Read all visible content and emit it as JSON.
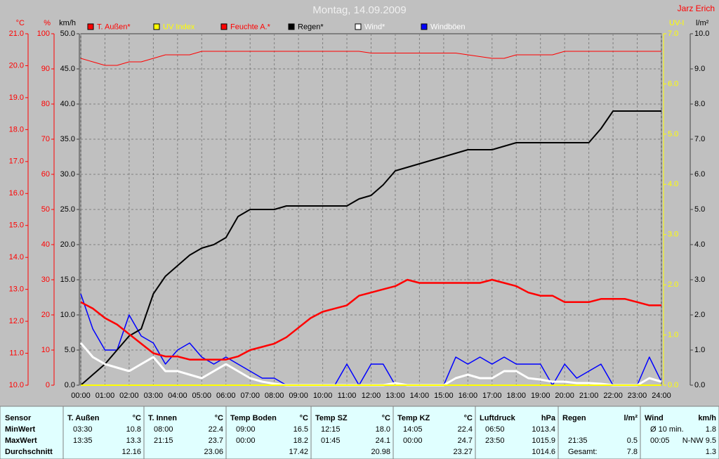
{
  "chart_data": {
    "type": "line",
    "title": "Montag, 14.09.2009",
    "annotation": "Jarz Erich",
    "grid": true,
    "xlim": [
      0,
      24
    ],
    "xticks": [
      {
        "value": 0,
        "label": "00:00"
      },
      {
        "value": 1,
        "label": "01:00"
      },
      {
        "value": 2,
        "label": "02:00"
      },
      {
        "value": 3,
        "label": "03:00"
      },
      {
        "value": 4,
        "label": "04:00"
      },
      {
        "value": 5,
        "label": "05:00"
      },
      {
        "value": 6,
        "label": "06:00"
      },
      {
        "value": 7,
        "label": "07:00"
      },
      {
        "value": 8,
        "label": "08:00"
      },
      {
        "value": 9,
        "label": "09:00"
      },
      {
        "value": 10,
        "label": "10:00"
      },
      {
        "value": 11,
        "label": "11:00"
      },
      {
        "value": 12,
        "label": "12:00"
      },
      {
        "value": 13,
        "label": "13:00"
      },
      {
        "value": 14,
        "label": "14:00"
      },
      {
        "value": 15,
        "label": "15:00"
      },
      {
        "value": 16,
        "label": "16:00"
      },
      {
        "value": 17,
        "label": "17:00"
      },
      {
        "value": 18,
        "label": "18:00"
      },
      {
        "value": 19,
        "label": "19:00"
      },
      {
        "value": 20,
        "label": "20:00"
      },
      {
        "value": 21,
        "label": "21:00"
      },
      {
        "value": 22,
        "label": "22:00"
      },
      {
        "value": 23,
        "label": "23:00"
      },
      {
        "value": 24,
        "label": "24:00"
      }
    ],
    "x": [
      0,
      0.5,
      1,
      1.5,
      2,
      2.5,
      3,
      3.5,
      4,
      4.5,
      5,
      5.5,
      6,
      6.5,
      7,
      7.5,
      8,
      8.5,
      9,
      9.5,
      10,
      10.5,
      11,
      11.5,
      12,
      12.5,
      13,
      13.5,
      14,
      14.5,
      15,
      15.5,
      16,
      16.5,
      17,
      17.5,
      18,
      18.5,
      19,
      19.5,
      20,
      20.5,
      21,
      21.5,
      22,
      22.5,
      23,
      23.5,
      24
    ],
    "axes": [
      {
        "label": "°C",
        "color": "#ff0000",
        "side": "left",
        "lim": [
          10,
          21
        ],
        "ticks": [
          {
            "value": 10,
            "label": "10.0"
          },
          {
            "value": 11,
            "label": "11.0"
          },
          {
            "value": 12,
            "label": "12.0"
          },
          {
            "value": 13,
            "label": "13.0"
          },
          {
            "value": 14,
            "label": "14.0"
          },
          {
            "value": 15,
            "label": "15.0"
          },
          {
            "value": 16,
            "label": "16.0"
          },
          {
            "value": 17,
            "label": "17.0"
          },
          {
            "value": 18,
            "label": "18.0"
          },
          {
            "value": 19,
            "label": "19.0"
          },
          {
            "value": 20,
            "label": "20.0"
          },
          {
            "value": 21,
            "label": "21.0"
          }
        ]
      },
      {
        "label": "%",
        "color": "#ff0000",
        "side": "left",
        "lim": [
          0,
          100
        ],
        "ticks": [
          0,
          10,
          20,
          30,
          40,
          50,
          60,
          70,
          80,
          90,
          100
        ]
      },
      {
        "label": "km/h",
        "color": "#000000",
        "side": "left",
        "lim": [
          0,
          50
        ],
        "ticks": [
          {
            "value": 0,
            "label": "0.0"
          },
          {
            "value": 5,
            "label": "5.0"
          },
          {
            "value": 10,
            "label": "10.0"
          },
          {
            "value": 15,
            "label": "15.0"
          },
          {
            "value": 20,
            "label": "20.0"
          },
          {
            "value": 25,
            "label": "25.0"
          },
          {
            "value": 30,
            "label": "30.0"
          },
          {
            "value": 35,
            "label": "35.0"
          },
          {
            "value": 40,
            "label": "40.0"
          },
          {
            "value": 45,
            "label": "45.0"
          },
          {
            "value": 50,
            "label": "50.0"
          }
        ]
      },
      {
        "label": "UV-I",
        "color": "#ffff00",
        "side": "right",
        "lim": [
          0,
          7
        ],
        "ticks": [
          {
            "value": 0,
            "label": "0.0"
          },
          {
            "value": 1,
            "label": "1.0"
          },
          {
            "value": 2,
            "label": "2.0"
          },
          {
            "value": 3,
            "label": "3.0"
          },
          {
            "value": 4,
            "label": "4.0"
          },
          {
            "value": 5,
            "label": "5.0"
          },
          {
            "value": 6,
            "label": "6.0"
          },
          {
            "value": 7,
            "label": "7.0"
          }
        ]
      },
      {
        "label": "l/m²",
        "color": "#000000",
        "side": "right",
        "lim": [
          0,
          10
        ],
        "ticks": [
          {
            "value": 0,
            "label": "0.0"
          },
          {
            "value": 1,
            "label": "1.0"
          },
          {
            "value": 2,
            "label": "2.0"
          },
          {
            "value": 3,
            "label": "3.0"
          },
          {
            "value": 4,
            "label": "4.0"
          },
          {
            "value": 5,
            "label": "5.0"
          },
          {
            "value": 6,
            "label": "6.0"
          },
          {
            "value": 7,
            "label": "7.0"
          },
          {
            "value": 8,
            "label": "8.0"
          },
          {
            "value": 9,
            "label": "9.0"
          },
          {
            "value": 10,
            "label": "10.0"
          }
        ]
      }
    ],
    "series": [
      {
        "name": "T. Außen*",
        "color": "#ff0000",
        "axis": 0,
        "values": [
          12.6,
          12.4,
          12.1,
          11.9,
          11.6,
          11.3,
          11.0,
          10.9,
          10.9,
          10.8,
          10.8,
          10.8,
          10.8,
          10.9,
          11.1,
          11.2,
          11.3,
          11.5,
          11.8,
          12.1,
          12.3,
          12.4,
          12.5,
          12.8,
          12.9,
          13.0,
          13.1,
          13.3,
          13.2,
          13.2,
          13.2,
          13.2,
          13.2,
          13.2,
          13.3,
          13.2,
          13.1,
          12.9,
          12.8,
          12.8,
          12.6,
          12.6,
          12.6,
          12.7,
          12.7,
          12.7,
          12.6,
          12.5,
          12.5
        ]
      },
      {
        "name": "UV Index",
        "color": "#ffff00",
        "axis": 3,
        "values": [
          0,
          0,
          0,
          0,
          0,
          0,
          0,
          0,
          0,
          0,
          0,
          0,
          0,
          0,
          0,
          0,
          0,
          0,
          0,
          0,
          0,
          0,
          0,
          0,
          0,
          0,
          0,
          0,
          0,
          0,
          0,
          0,
          0,
          0,
          0,
          0,
          0,
          0,
          0,
          0,
          0,
          0,
          0,
          0,
          0,
          0,
          0,
          0,
          0
        ]
      },
      {
        "name": "Feuchte A.*",
        "color": "#ff0000",
        "axis": 1,
        "values": [
          93,
          92,
          91,
          91,
          92,
          92,
          93,
          94,
          94,
          94,
          95,
          95,
          95,
          95,
          95,
          95,
          95,
          95,
          95,
          95,
          95,
          95,
          95,
          95,
          94.5,
          94.5,
          94.5,
          94.5,
          94.5,
          94.5,
          94.5,
          94.5,
          94,
          93.5,
          93,
          93,
          94,
          94,
          94,
          94,
          95,
          95,
          95,
          95,
          95,
          95,
          95,
          95,
          95
        ]
      },
      {
        "name": "Regen*",
        "color": "#000000",
        "axis": 4,
        "values": [
          0,
          0.3,
          0.6,
          1.0,
          1.4,
          1.6,
          2.6,
          3.1,
          3.4,
          3.7,
          3.9,
          4.0,
          4.2,
          4.8,
          5.0,
          5.0,
          5.0,
          5.1,
          5.1,
          5.1,
          5.1,
          5.1,
          5.1,
          5.3,
          5.4,
          5.7,
          6.1,
          6.2,
          6.3,
          6.4,
          6.5,
          6.6,
          6.7,
          6.7,
          6.7,
          6.8,
          6.9,
          6.9,
          6.9,
          6.9,
          6.9,
          6.9,
          6.9,
          7.3,
          7.8,
          7.8,
          7.8,
          7.8,
          7.8
        ]
      },
      {
        "name": "Wind*",
        "color": "#ffffff",
        "axis": 2,
        "values": [
          6,
          4,
          3,
          2.5,
          2,
          3,
          4,
          2,
          2,
          1.5,
          1,
          2,
          3,
          2,
          1,
          0.5,
          0.2,
          0,
          0,
          0,
          0,
          0,
          0,
          0,
          0,
          0,
          0.3,
          0,
          0,
          0,
          0,
          1,
          1.5,
          1,
          1,
          2,
          2,
          1,
          0.8,
          0.5,
          0.5,
          0.3,
          0.3,
          0.2,
          0,
          0,
          0,
          1,
          0.5
        ]
      },
      {
        "name": "Windböen",
        "color": "#0000ff",
        "axis": 2,
        "values": [
          13,
          8,
          5,
          5,
          10,
          7,
          6,
          3,
          5,
          6,
          4,
          3,
          4,
          3,
          2,
          1,
          1,
          0,
          0,
          0,
          0,
          0,
          3,
          0,
          3,
          3,
          0,
          0,
          0,
          0,
          0,
          4,
          3,
          4,
          3,
          4,
          3,
          3,
          3,
          0,
          3,
          1,
          2,
          3,
          0,
          0,
          0,
          4,
          0.5
        ]
      }
    ]
  },
  "table": {
    "header": "Sensor",
    "columns": [
      {
        "name": "T. Außen",
        "unit": "°C"
      },
      {
        "name": "T. Innen",
        "unit": "°C"
      },
      {
        "name": "Temp Boden",
        "unit": "°C"
      },
      {
        "name": "Temp SZ",
        "unit": "°C"
      },
      {
        "name": "Temp KZ",
        "unit": "°C"
      },
      {
        "name": "Luftdruck",
        "unit": "hPa"
      },
      {
        "name": "Regen",
        "unit": "l/m²"
      },
      {
        "name": "Wind",
        "unit": "km/h"
      }
    ],
    "rows": [
      {
        "label": "MinWert",
        "cells": [
          {
            "time": "03:30",
            "value": "10.8"
          },
          {
            "time": "08:00",
            "value": "22.4"
          },
          {
            "time": "09:00",
            "value": "16.5"
          },
          {
            "time": "12:15",
            "value": "18.0"
          },
          {
            "time": "14:05",
            "value": "22.4"
          },
          {
            "time": "06:50",
            "value": "1013.4"
          },
          null,
          {
            "time": "Ø 10 min.",
            "value": "1.8"
          }
        ]
      },
      {
        "label": "MaxWert",
        "cells": [
          {
            "time": "13:35",
            "value": "13.3"
          },
          {
            "time": "21:15",
            "value": "23.7"
          },
          {
            "time": "00:00",
            "value": "18.2"
          },
          {
            "time": "01:45",
            "value": "24.1"
          },
          {
            "time": "00:00",
            "value": "24.7"
          },
          {
            "time": "23:50",
            "value": "1015.9"
          },
          {
            "time": "21:35",
            "value": "0.5"
          },
          {
            "time": "00:05",
            "value": "N-NW 9.5"
          }
        ]
      },
      {
        "label": "Durchschnitt",
        "cells": [
          {
            "value": "12.16"
          },
          {
            "value": "23.06"
          },
          {
            "value": "17.42"
          },
          {
            "value": "20.98"
          },
          {
            "value": "23.27"
          },
          {
            "value": "1014.6"
          },
          {
            "time": "Gesamt:",
            "value": "7.8"
          },
          {
            "value": "1.3"
          }
        ]
      }
    ]
  }
}
